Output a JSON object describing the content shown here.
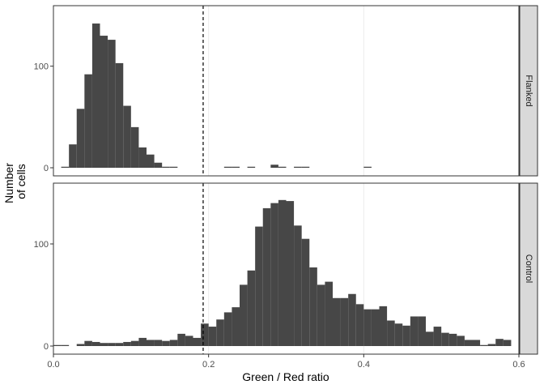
{
  "chart_data": {
    "type": "bar",
    "chart_kind": "faceted histogram",
    "xlabel": "Green / Red ratio",
    "ylabel": [
      "Number",
      "of cells"
    ],
    "xlim": [
      0,
      0.6
    ],
    "x_ticks": [
      0.0,
      0.2,
      0.4,
      0.6
    ],
    "x_tick_labels": [
      "0.0",
      "0.2",
      "0.4",
      "0.6"
    ],
    "threshold_line": {
      "x": 0.193,
      "style": "dashed"
    },
    "bin_width": 0.01,
    "grid": "vertical major gridlines",
    "colors": {
      "bar": "#474747",
      "strip_bg": "#d9d9d9",
      "frame": "#333333",
      "grid": "#ebebeb",
      "threshold": "#000000"
    },
    "facets": [
      {
        "name": "Flanked",
        "ylim": [
          0,
          150
        ],
        "y_ticks": [
          0,
          100
        ],
        "y_tick_labels": [
          "0",
          "100"
        ],
        "bins": [
          {
            "x": 0.015,
            "y": 1
          },
          {
            "x": 0.025,
            "y": 23
          },
          {
            "x": 0.035,
            "y": 58
          },
          {
            "x": 0.045,
            "y": 92
          },
          {
            "x": 0.055,
            "y": 142
          },
          {
            "x": 0.065,
            "y": 130
          },
          {
            "x": 0.075,
            "y": 126
          },
          {
            "x": 0.085,
            "y": 103
          },
          {
            "x": 0.095,
            "y": 61
          },
          {
            "x": 0.105,
            "y": 40
          },
          {
            "x": 0.115,
            "y": 20
          },
          {
            "x": 0.125,
            "y": 13
          },
          {
            "x": 0.135,
            "y": 5
          },
          {
            "x": 0.145,
            "y": 1
          },
          {
            "x": 0.155,
            "y": 1
          },
          {
            "x": 0.225,
            "y": 1
          },
          {
            "x": 0.235,
            "y": 1
          },
          {
            "x": 0.255,
            "y": 1
          },
          {
            "x": 0.285,
            "y": 3
          },
          {
            "x": 0.295,
            "y": 1
          },
          {
            "x": 0.315,
            "y": 1
          },
          {
            "x": 0.325,
            "y": 1
          },
          {
            "x": 0.405,
            "y": 1
          }
        ]
      },
      {
        "name": "Control",
        "ylim": [
          0,
          150
        ],
        "y_ticks": [
          0,
          100
        ],
        "y_tick_labels": [
          "0",
          "100"
        ],
        "bins": [
          {
            "x": 0.005,
            "y": 1
          },
          {
            "x": 0.015,
            "y": 1
          },
          {
            "x": 0.025,
            "y": 0
          },
          {
            "x": 0.035,
            "y": 2
          },
          {
            "x": 0.045,
            "y": 5
          },
          {
            "x": 0.055,
            "y": 4
          },
          {
            "x": 0.065,
            "y": 3
          },
          {
            "x": 0.075,
            "y": 3
          },
          {
            "x": 0.085,
            "y": 3
          },
          {
            "x": 0.095,
            "y": 4
          },
          {
            "x": 0.105,
            "y": 5
          },
          {
            "x": 0.115,
            "y": 8
          },
          {
            "x": 0.125,
            "y": 6
          },
          {
            "x": 0.135,
            "y": 6
          },
          {
            "x": 0.145,
            "y": 5
          },
          {
            "x": 0.155,
            "y": 6
          },
          {
            "x": 0.165,
            "y": 12
          },
          {
            "x": 0.175,
            "y": 10
          },
          {
            "x": 0.185,
            "y": 8
          },
          {
            "x": 0.195,
            "y": 22
          },
          {
            "x": 0.205,
            "y": 19
          },
          {
            "x": 0.215,
            "y": 26
          },
          {
            "x": 0.225,
            "y": 33
          },
          {
            "x": 0.235,
            "y": 38
          },
          {
            "x": 0.245,
            "y": 60
          },
          {
            "x": 0.255,
            "y": 74
          },
          {
            "x": 0.265,
            "y": 117
          },
          {
            "x": 0.275,
            "y": 135
          },
          {
            "x": 0.285,
            "y": 140
          },
          {
            "x": 0.295,
            "y": 143
          },
          {
            "x": 0.305,
            "y": 142
          },
          {
            "x": 0.315,
            "y": 118
          },
          {
            "x": 0.325,
            "y": 105
          },
          {
            "x": 0.335,
            "y": 77
          },
          {
            "x": 0.345,
            "y": 60
          },
          {
            "x": 0.355,
            "y": 63
          },
          {
            "x": 0.365,
            "y": 47
          },
          {
            "x": 0.375,
            "y": 47
          },
          {
            "x": 0.385,
            "y": 51
          },
          {
            "x": 0.395,
            "y": 41
          },
          {
            "x": 0.405,
            "y": 36
          },
          {
            "x": 0.415,
            "y": 36
          },
          {
            "x": 0.425,
            "y": 39
          },
          {
            "x": 0.435,
            "y": 25
          },
          {
            "x": 0.445,
            "y": 22
          },
          {
            "x": 0.455,
            "y": 20
          },
          {
            "x": 0.465,
            "y": 29
          },
          {
            "x": 0.475,
            "y": 29
          },
          {
            "x": 0.485,
            "y": 14
          },
          {
            "x": 0.495,
            "y": 19
          },
          {
            "x": 0.505,
            "y": 13
          },
          {
            "x": 0.515,
            "y": 12
          },
          {
            "x": 0.525,
            "y": 10
          },
          {
            "x": 0.535,
            "y": 6
          },
          {
            "x": 0.545,
            "y": 6
          },
          {
            "x": 0.555,
            "y": 1
          },
          {
            "x": 0.565,
            "y": 2
          },
          {
            "x": 0.575,
            "y": 7
          },
          {
            "x": 0.585,
            "y": 6
          }
        ]
      }
    ]
  }
}
